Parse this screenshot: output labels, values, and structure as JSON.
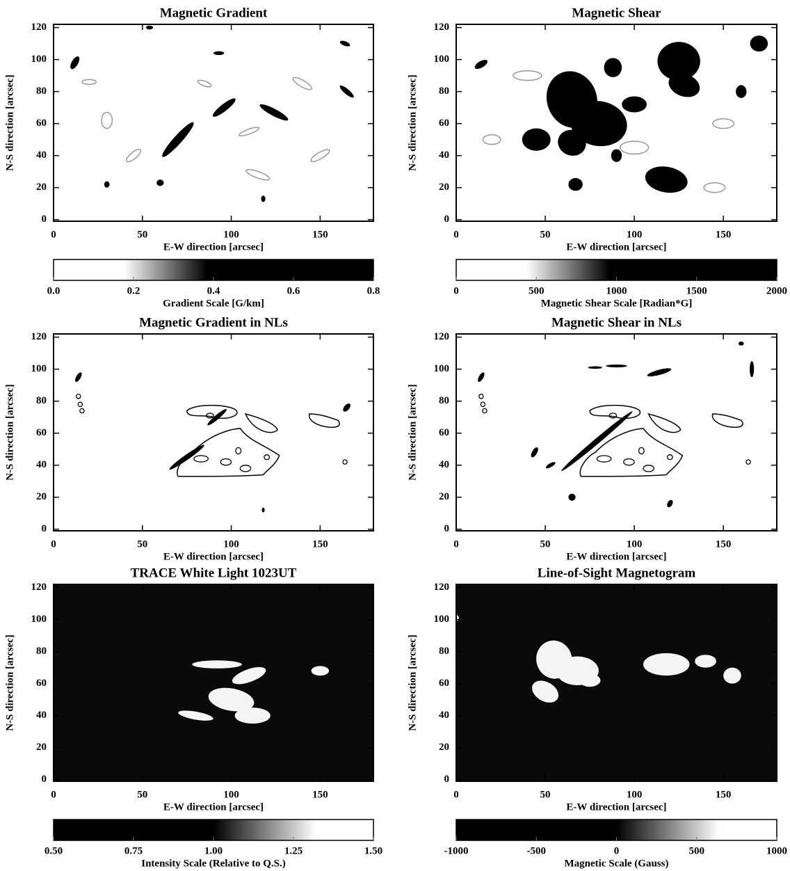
{
  "chart_data": [
    {
      "type": "image",
      "title": "Magnetic Gradient",
      "xlabel": "E-W direction [arcsec]",
      "ylabel": "N-S direction [arcsec]",
      "xlim": [
        0,
        180
      ],
      "ylim": [
        -1,
        122
      ],
      "xticks": [
        0,
        50,
        100,
        150
      ],
      "yticks": [
        0,
        20,
        40,
        60,
        80,
        100,
        120
      ],
      "background": "#ffffff",
      "colorbar": {
        "label": "Gradient Scale [G/km]",
        "lim": [
          0,
          0.8
        ],
        "cmap": "gray_r",
        "ticks": [
          {
            "value": 0,
            "label": "0.0"
          },
          0.2,
          0.4,
          0.6,
          0.8
        ]
      }
    },
    {
      "type": "image",
      "title": "Magnetic Shear",
      "xlabel": "E-W direction [arcsec]",
      "ylabel": "N-S direction [arcsec]",
      "xlim": [
        0,
        180
      ],
      "ylim": [
        -1,
        122
      ],
      "xticks": [
        0,
        50,
        100,
        150
      ],
      "yticks": [
        0,
        20,
        40,
        60,
        80,
        100,
        120
      ],
      "background": "#ffffff",
      "colorbar": {
        "label": "Magnetic Shear Scale [Radian*G]",
        "lim": [
          0,
          2000
        ],
        "cmap": "gray_r",
        "ticks": [
          0,
          500,
          1000,
          1500,
          2000
        ]
      }
    },
    {
      "type": "image",
      "title": "Magnetic Gradient in NLs",
      "xlabel": "E-W direction [arcsec]",
      "ylabel": "N-S direction [arcsec]",
      "xlim": [
        0,
        180
      ],
      "ylim": [
        -1,
        122
      ],
      "xticks": [
        0,
        50,
        100,
        150
      ],
      "yticks": [
        0,
        20,
        40,
        60,
        80,
        100,
        120
      ],
      "background": "#ffffff"
    },
    {
      "type": "image",
      "title": "Magnetic Shear in NLs",
      "xlabel": "E-W direction [arcsec]",
      "ylabel": "N-S direction [arcsec]",
      "xlim": [
        0,
        180
      ],
      "ylim": [
        -1,
        122
      ],
      "xticks": [
        0,
        50,
        100,
        150
      ],
      "yticks": [
        0,
        20,
        40,
        60,
        80,
        100,
        120
      ],
      "background": "#ffffff"
    },
    {
      "type": "image",
      "title": "TRACE White Light 1023UT",
      "xlabel": "E-W direction [arcsec]",
      "ylabel": "N-S direction [arcsec]",
      "xlim": [
        0,
        180
      ],
      "ylim": [
        -1,
        122
      ],
      "xticks": [
        0,
        50,
        100,
        150
      ],
      "yticks": [
        0,
        20,
        40,
        60,
        80,
        100,
        120
      ],
      "background": "#0a0a0a",
      "colorbar": {
        "label": "Intensity Scale (Relative to Q.S.)",
        "lim": [
          0.5,
          1.5
        ],
        "cmap": "gray",
        "ticks": [
          {
            "value": 0.5,
            "label": "0.50"
          },
          0.75,
          {
            "value": 1,
            "label": "1.00"
          },
          1.25,
          {
            "value": 1.5,
            "label": "1.50"
          }
        ]
      }
    },
    {
      "type": "image",
      "title": "Line-of-Sight Magnetogram",
      "xlabel": "E-W direction [arcsec]",
      "ylabel": "N-S direction [arcsec]",
      "xlim": [
        0,
        180
      ],
      "ylim": [
        -1,
        122
      ],
      "xticks": [
        0,
        50,
        100,
        150
      ],
      "yticks": [
        0,
        20,
        40,
        60,
        80,
        100,
        120
      ],
      "background": "#0a0a0a",
      "colorbar": {
        "label": "Magnetic Scale (Gauss)",
        "lim": [
          -1000,
          1000
        ],
        "cmap": "gray",
        "ticks": [
          -1000,
          -500,
          0,
          500,
          1000
        ]
      }
    }
  ]
}
